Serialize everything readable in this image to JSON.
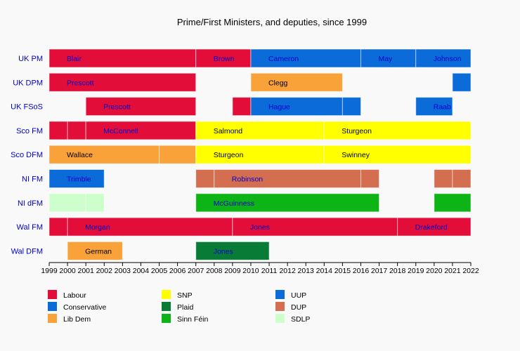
{
  "chart_data": {
    "type": "timeline",
    "title": "Prime/First Ministers, and deputies, since 1999",
    "x_range": [
      1999,
      2022
    ],
    "x_ticks": [
      1999,
      2000,
      2001,
      2002,
      2003,
      2004,
      2005,
      2006,
      2007,
      2008,
      2009,
      2010,
      2011,
      2012,
      2013,
      2014,
      2015,
      2016,
      2017,
      2018,
      2019,
      2020,
      2021,
      2022
    ],
    "grid": false,
    "legend_position": "bottom",
    "parties": {
      "Labour": "#e30d3a",
      "Conservative": "#0b6bd8",
      "Lib Dem": "#f9a23a",
      "SNP": "#ffff00",
      "Plaid": "#087c36",
      "Sinn Féin": "#0eb316",
      "UUP": "#0b6bd8",
      "DUP": "#d36e50",
      "SDLP": "#ccffcc"
    },
    "legend": [
      [
        "Labour",
        "Conservative",
        "Lib Dem"
      ],
      [
        "SNP",
        "Plaid",
        "Sinn Féin"
      ],
      [
        "UUP",
        "DUP",
        "SDLP"
      ]
    ],
    "rows": [
      {
        "label": "UK PM",
        "segments": [
          {
            "start": 1999,
            "end": 2007,
            "party": "Labour",
            "text": "Blair"
          },
          {
            "start": 2007,
            "end": 2010,
            "party": "Labour",
            "text": "Brown"
          },
          {
            "start": 2010,
            "end": 2016,
            "party": "Conservative",
            "text": "Cameron"
          },
          {
            "start": 2016,
            "end": 2019,
            "party": "Conservative",
            "text": "May"
          },
          {
            "start": 2019,
            "end": 2022,
            "party": "Conservative",
            "text": "Johnson"
          }
        ]
      },
      {
        "label": "UK DPM",
        "segments": [
          {
            "start": 1999,
            "end": 2007,
            "party": "Labour",
            "text": "Prescott"
          },
          {
            "start": 2010,
            "end": 2015,
            "party": "Lib Dem",
            "text": "Clegg"
          },
          {
            "start": 2021,
            "end": 2022,
            "party": "Conservative",
            "text": ""
          }
        ]
      },
      {
        "label": "UK FSoS",
        "segments": [
          {
            "start": 2001,
            "end": 2007,
            "party": "Labour",
            "text": "Prescott"
          },
          {
            "start": 2009,
            "end": 2010,
            "party": "Labour",
            "text": ""
          },
          {
            "start": 2010,
            "end": 2015,
            "party": "Conservative",
            "text": "Hague"
          },
          {
            "start": 2015,
            "end": 2016,
            "party": "Conservative",
            "text": ""
          },
          {
            "start": 2019,
            "end": 2021,
            "party": "Conservative",
            "text": "Raab"
          }
        ]
      },
      {
        "label": "Sco FM",
        "segments": [
          {
            "start": 1999,
            "end": 2000,
            "party": "Labour",
            "text": ""
          },
          {
            "start": 2000,
            "end": 2001,
            "party": "Labour",
            "text": ""
          },
          {
            "start": 2001,
            "end": 2007,
            "party": "Labour",
            "text": "McConnell"
          },
          {
            "start": 2007,
            "end": 2014,
            "party": "SNP",
            "text": "Salmond"
          },
          {
            "start": 2014,
            "end": 2022,
            "party": "SNP",
            "text": "Sturgeon"
          }
        ]
      },
      {
        "label": "Sco DFM",
        "segments": [
          {
            "start": 1999,
            "end": 2005,
            "party": "Lib Dem",
            "text": "Wallace"
          },
          {
            "start": 2005,
            "end": 2007,
            "party": "Lib Dem",
            "text": ""
          },
          {
            "start": 2007,
            "end": 2014,
            "party": "SNP",
            "text": "Sturgeon"
          },
          {
            "start": 2014,
            "end": 2022,
            "party": "SNP",
            "text": "Swinney"
          }
        ]
      },
      {
        "label": "NI FM",
        "segments": [
          {
            "start": 1999,
            "end": 2002,
            "party": "UUP",
            "text": "Trimble"
          },
          {
            "start": 2007,
            "end": 2008,
            "party": "DUP",
            "text": ""
          },
          {
            "start": 2008,
            "end": 2016,
            "party": "DUP",
            "text": "Robinson"
          },
          {
            "start": 2016,
            "end": 2017,
            "party": "DUP",
            "text": ""
          },
          {
            "start": 2020,
            "end": 2021,
            "party": "DUP",
            "text": ""
          },
          {
            "start": 2021,
            "end": 2022,
            "party": "DUP",
            "text": ""
          }
        ]
      },
      {
        "label": "NI dFM",
        "segments": [
          {
            "start": 1999,
            "end": 2001,
            "party": "SDLP",
            "text": ""
          },
          {
            "start": 2001,
            "end": 2002,
            "party": "SDLP",
            "text": ""
          },
          {
            "start": 2007,
            "end": 2017,
            "party": "Sinn Féin",
            "text": "McGuinness"
          },
          {
            "start": 2020,
            "end": 2022,
            "party": "Sinn Féin",
            "text": ""
          }
        ]
      },
      {
        "label": "Wal FM",
        "segments": [
          {
            "start": 1999,
            "end": 2000,
            "party": "Labour",
            "text": ""
          },
          {
            "start": 2000,
            "end": 2009,
            "party": "Labour",
            "text": "Morgan"
          },
          {
            "start": 2009,
            "end": 2018,
            "party": "Labour",
            "text": "Jones"
          },
          {
            "start": 2018,
            "end": 2022,
            "party": "Labour",
            "text": "Drakeford"
          }
        ]
      },
      {
        "label": "Wal DFM",
        "segments": [
          {
            "start": 2000,
            "end": 2003,
            "party": "Lib Dem",
            "text": "German"
          },
          {
            "start": 2007,
            "end": 2011,
            "party": "Plaid",
            "text": "Jones"
          }
        ]
      }
    ]
  }
}
